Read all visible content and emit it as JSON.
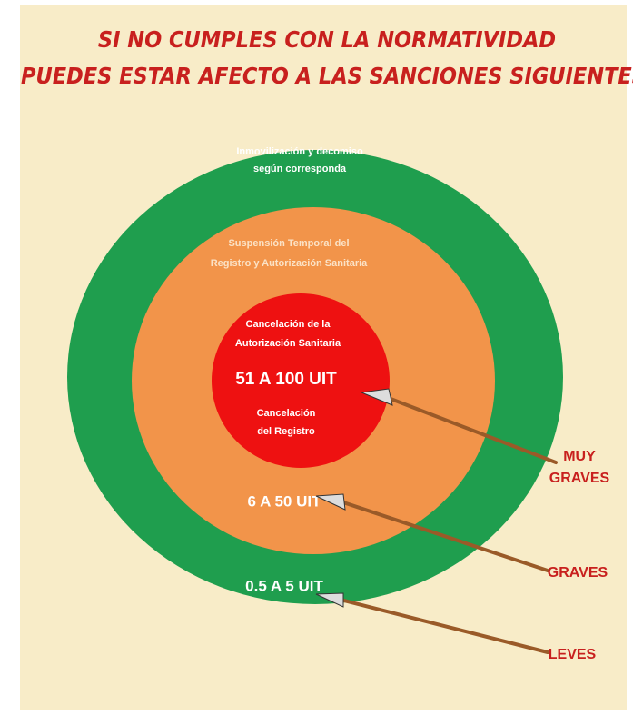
{
  "header": {
    "title_lines": [
      "SI NO CUMPLES CON LA NORMATIVIDAD",
      "PUEDES ESTAR AFECTO A LAS SANCIONES SIGUIENTES:"
    ]
  },
  "rings": [
    {
      "description_lines": [
        "Inmovilización y decomiso",
        "según corresponda"
      ],
      "amount": "0.5 A 5 UIT",
      "level": [
        "LEVES"
      ]
    },
    {
      "description_lines": [
        "Suspensión Temporal del",
        "Registro y Autorización Sanitaria"
      ],
      "amount": "6 A 50 UIT",
      "level": [
        "GRAVES"
      ]
    },
    {
      "description_lines": [
        "Cancelación de la",
        "Autorización Sanitaria"
      ],
      "amount": "51 A 100 UIT",
      "extra_lines": [
        "Cancelación",
        "del Registro"
      ],
      "level": [
        "MUY",
        "GRAVES"
      ]
    }
  ]
}
